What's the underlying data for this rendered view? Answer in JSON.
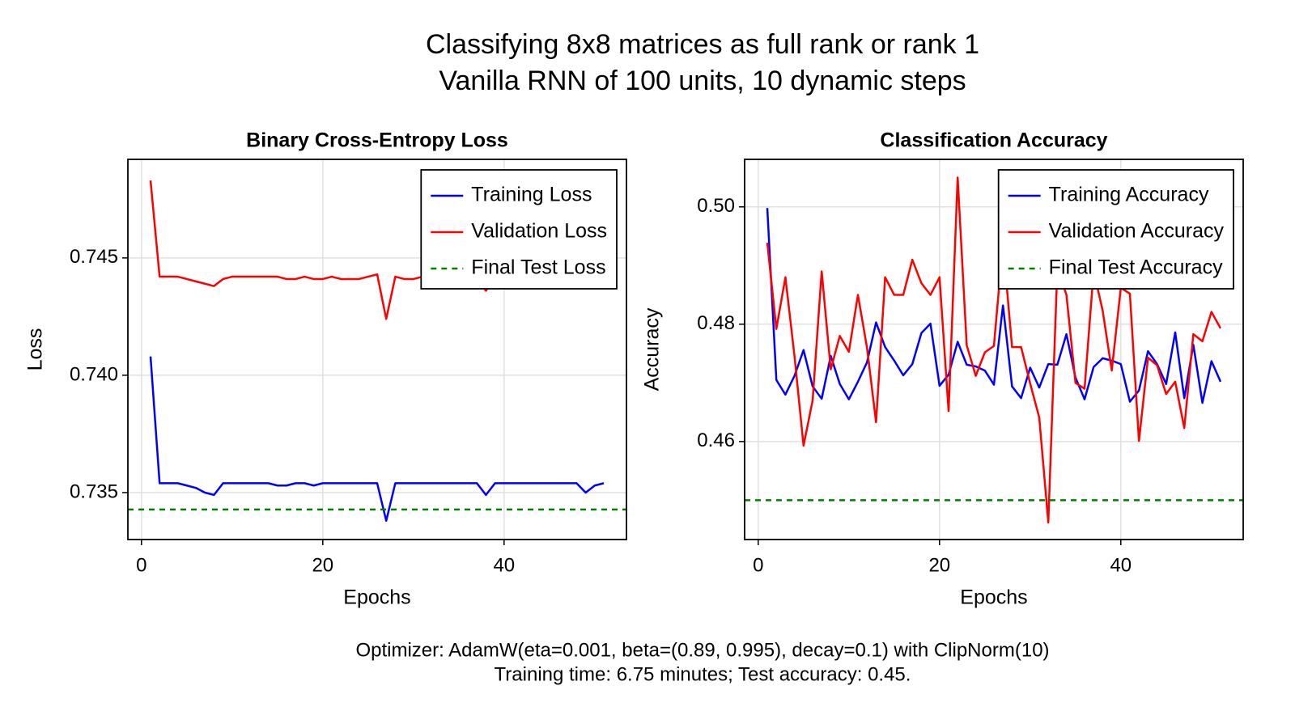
{
  "title": "Classifying 8x8 matrices as full rank or rank 1",
  "subtitle": "Vanilla RNN of 100 units, 10 dynamic steps",
  "notes": [
    "Optimizer: AdamW(eta=0.001, beta=(0.89, 0.995), decay=0.1) with ClipNorm(10)",
    "Training time: 6.75 minutes; Test accuracy: 0.45."
  ],
  "chart_data": [
    {
      "type": "line",
      "title": "Binary Cross-Entropy Loss",
      "x_label": "Epochs",
      "y_label": "Loss",
      "x": [
        1,
        2,
        3,
        4,
        5,
        6,
        7,
        8,
        9,
        10,
        11,
        12,
        13,
        14,
        15,
        16,
        17,
        18,
        19,
        20,
        21,
        22,
        23,
        24,
        25,
        26,
        27,
        28,
        29,
        30,
        31,
        32,
        33,
        34,
        35,
        36,
        37,
        38,
        39,
        40,
        41,
        42,
        43,
        44,
        45,
        46,
        47,
        48,
        49,
        50,
        51
      ],
      "xlim": [
        -1.5,
        53.5
      ],
      "xticks": [
        0,
        20,
        40
      ],
      "ylim": [
        0.733,
        0.7492
      ],
      "yticks": [
        0.735,
        {
          "value": 0.74,
          "label": "0.740"
        },
        0.745
      ],
      "grid": true,
      "legend": "upper right",
      "series": [
        {
          "name": "Training Loss",
          "color": "#0000ff",
          "values": [
            0.7408,
            0.7354,
            0.7354,
            0.7354,
            0.7353,
            0.7352,
            0.735,
            0.7349,
            0.7354,
            0.7354,
            0.7354,
            0.7354,
            0.7354,
            0.7354,
            0.7353,
            0.7353,
            0.7354,
            0.7354,
            0.7353,
            0.7354,
            0.7354,
            0.7354,
            0.7354,
            0.7354,
            0.7354,
            0.7354,
            0.7338,
            0.7354,
            0.7354,
            0.7354,
            0.7354,
            0.7354,
            0.7354,
            0.7354,
            0.7354,
            0.7354,
            0.7354,
            0.7349,
            0.7354,
            0.7354,
            0.7354,
            0.7354,
            0.7354,
            0.7354,
            0.7354,
            0.7354,
            0.7354,
            0.7354,
            0.735,
            0.7353,
            0.7354
          ]
        },
        {
          "name": "Validation Loss",
          "color": "#ff0000",
          "values": [
            0.7483,
            0.7442,
            0.7442,
            0.7442,
            0.7441,
            0.744,
            0.7439,
            0.7438,
            0.7441,
            0.7442,
            0.7442,
            0.7442,
            0.7442,
            0.7442,
            0.7442,
            0.7441,
            0.7441,
            0.7442,
            0.7441,
            0.7441,
            0.7442,
            0.7441,
            0.7441,
            0.7441,
            0.7442,
            0.7443,
            0.7424,
            0.7442,
            0.7441,
            0.7441,
            0.7442,
            0.7442,
            0.7441,
            0.7442,
            0.7442,
            0.7442,
            0.7442,
            0.7436,
            0.7442,
            0.7442,
            0.7442,
            0.7442,
            0.7442,
            0.7442,
            0.7442,
            0.7442,
            0.7441,
            0.7442,
            0.7442,
            0.744,
            0.7442
          ]
        },
        {
          "name": "Final Test Loss",
          "color": "#008000",
          "dashed": true,
          "value": 0.73428
        }
      ]
    },
    {
      "type": "line",
      "title": "Classification Accuracy",
      "x_label": "Epochs",
      "y_label": "Accuracy",
      "x": [
        1,
        2,
        3,
        4,
        5,
        6,
        7,
        8,
        9,
        10,
        11,
        12,
        13,
        14,
        15,
        16,
        17,
        18,
        19,
        20,
        21,
        22,
        23,
        24,
        25,
        26,
        27,
        28,
        29,
        30,
        31,
        32,
        33,
        34,
        35,
        36,
        37,
        38,
        39,
        40,
        41,
        42,
        43,
        44,
        45,
        46,
        47,
        48,
        49,
        50,
        51
      ],
      "xlim": [
        -1.5,
        53.5
      ],
      "xticks": [
        0,
        20,
        40
      ],
      "ylim": [
        0.4433,
        0.5081
      ],
      "yticks": [
        0.46,
        0.48,
        {
          "value": 0.5,
          "label": "0.50"
        }
      ],
      "grid": true,
      "legend": "upper right",
      "series": [
        {
          "name": "Training Accuracy",
          "color": "#0000ff",
          "values": [
            0.4998,
            0.4705,
            0.468,
            0.4712,
            0.4756,
            0.4694,
            0.4673,
            0.4746,
            0.4698,
            0.4672,
            0.4702,
            0.4735,
            0.4803,
            0.4761,
            0.4738,
            0.4713,
            0.4732,
            0.4785,
            0.4801,
            0.4695,
            0.4714,
            0.477,
            0.4731,
            0.4728,
            0.4721,
            0.4697,
            0.4832,
            0.4694,
            0.4674,
            0.4726,
            0.4692,
            0.4732,
            0.4731,
            0.4783,
            0.4709,
            0.4672,
            0.4727,
            0.4742,
            0.4738,
            0.4732,
            0.4668,
            0.4687,
            0.4754,
            0.4732,
            0.4698,
            0.4786,
            0.4674,
            0.4765,
            0.4666,
            0.4737,
            0.4702
          ]
        },
        {
          "name": "Validation Accuracy",
          "color": "#ff0000",
          "values": [
            0.4939,
            0.4792,
            0.488,
            0.4746,
            0.4593,
            0.467,
            0.489,
            0.4723,
            0.478,
            0.4753,
            0.485,
            0.476,
            0.4633,
            0.488,
            0.485,
            0.485,
            0.491,
            0.487,
            0.485,
            0.488,
            0.4652,
            0.505,
            0.4764,
            0.4712,
            0.4752,
            0.4763,
            0.4939,
            0.4761,
            0.4761,
            0.4699,
            0.4641,
            0.4462,
            0.4897,
            0.485,
            0.47,
            0.469,
            0.4891,
            0.4823,
            0.4721,
            0.4862,
            0.4852,
            0.4601,
            0.4743,
            0.473,
            0.4681,
            0.4702,
            0.4623,
            0.4783,
            0.4771,
            0.4821,
            0.4793
          ]
        },
        {
          "name": "Final Test Accuracy",
          "color": "#008000",
          "dashed": true,
          "value": 0.45
        }
      ]
    }
  ]
}
